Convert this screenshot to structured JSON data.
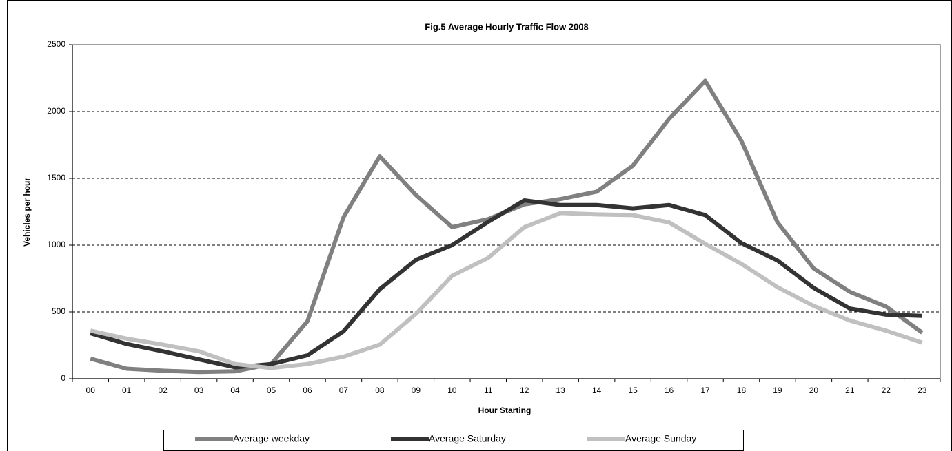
{
  "chart_data": {
    "type": "line",
    "title": "Fig.5 Average Hourly Traffic Flow 2008",
    "x_label": "Hour Starting",
    "y_label": "Vehicles per hour",
    "categories": [
      "00",
      "01",
      "02",
      "03",
      "04",
      "05",
      "06",
      "07",
      "08",
      "09",
      "10",
      "11",
      "12",
      "13",
      "14",
      "15",
      "16",
      "17",
      "18",
      "19",
      "20",
      "21",
      "22",
      "23"
    ],
    "series": [
      {
        "name": "Average weekday",
        "color": "#808080",
        "values": [
          150,
          75,
          60,
          50,
          55,
          110,
          430,
          1210,
          1665,
          1375,
          1135,
          1195,
          1305,
          1345,
          1400,
          1595,
          1945,
          2230,
          1780,
          1170,
          825,
          650,
          540,
          345
        ]
      },
      {
        "name": "Average Saturday",
        "color": "#333333",
        "values": [
          340,
          260,
          205,
          145,
          85,
          110,
          175,
          355,
          670,
          890,
          1000,
          1175,
          1335,
          1300,
          1300,
          1275,
          1300,
          1225,
          1015,
          885,
          680,
          525,
          480,
          470
        ]
      },
      {
        "name": "Average Sunday",
        "color": "#c0c0c0",
        "values": [
          360,
          300,
          255,
          205,
          110,
          80,
          110,
          165,
          255,
          485,
          770,
          905,
          1135,
          1240,
          1230,
          1225,
          1170,
          1010,
          860,
          685,
          545,
          435,
          360,
          270
        ]
      }
    ],
    "ylim": [
      0,
      2500
    ],
    "yticks": [
      0,
      500,
      1000,
      1500,
      2000,
      2500
    ],
    "grid": true,
    "legend": "bottom"
  }
}
